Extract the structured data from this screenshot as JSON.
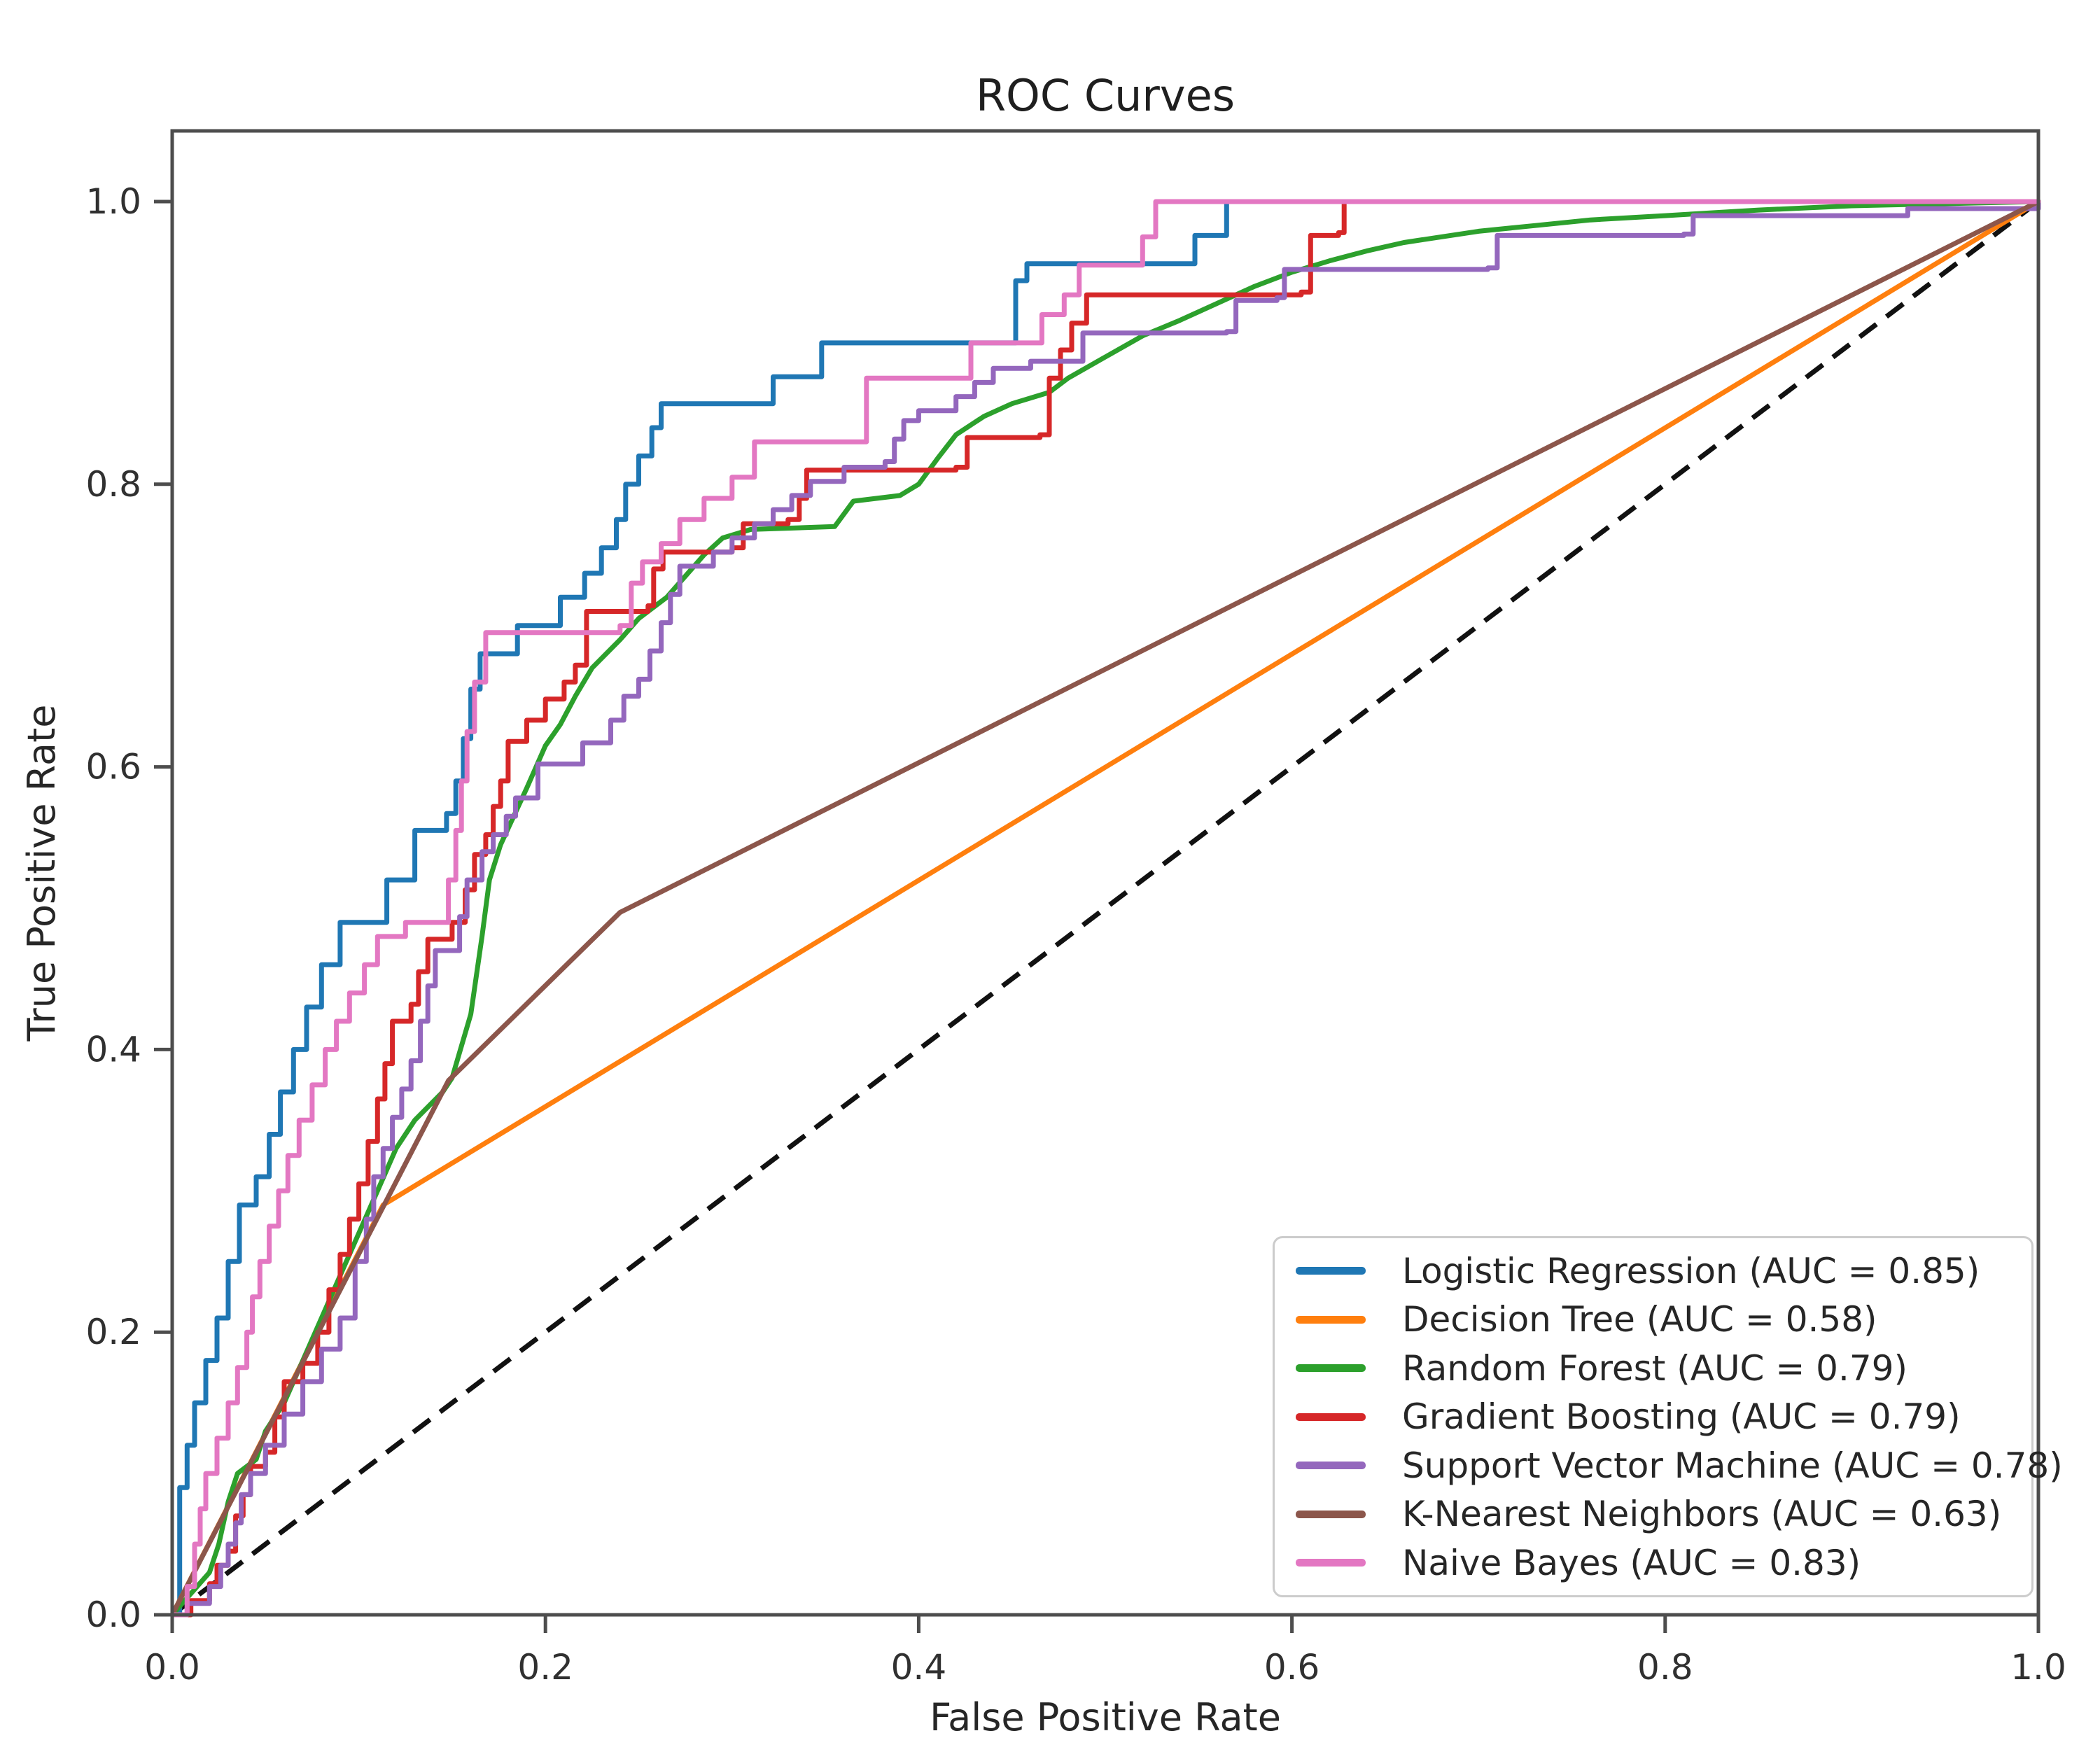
{
  "title": "ROC Curves",
  "axes": {
    "xlabel": "False Positive Rate",
    "ylabel": "True Positive Rate",
    "x_ticks": [
      "0.0",
      "0.2",
      "0.4",
      "0.6",
      "0.8",
      "1.0"
    ],
    "y_ticks": [
      "0.0",
      "0.2",
      "0.4",
      "0.6",
      "0.8",
      "1.0"
    ]
  },
  "chart_data": {
    "type": "line",
    "title": "ROC Curves",
    "xlabel": "False Positive Rate",
    "ylabel": "True Positive Rate",
    "xlim": [
      0,
      1
    ],
    "ylim": [
      0,
      1.05
    ],
    "grid": false,
    "legend_position": "lower right",
    "baseline": {
      "name": "chance-diagonal",
      "style": "dashed",
      "color": "#111111",
      "points": [
        [
          0,
          0
        ],
        [
          1,
          1
        ]
      ]
    },
    "series": [
      {
        "name": "logistic-regression",
        "label": "Logistic Regression (AUC = 0.85)",
        "auc": 0.85,
        "color": "#1f77b4",
        "style": "step",
        "points": [
          [
            0,
            0
          ],
          [
            0.004,
            0.09
          ],
          [
            0.008,
            0.12
          ],
          [
            0.012,
            0.15
          ],
          [
            0.018,
            0.18
          ],
          [
            0.024,
            0.21
          ],
          [
            0.03,
            0.25
          ],
          [
            0.036,
            0.29
          ],
          [
            0.045,
            0.31
          ],
          [
            0.052,
            0.34
          ],
          [
            0.058,
            0.37
          ],
          [
            0.065,
            0.4
          ],
          [
            0.072,
            0.43
          ],
          [
            0.08,
            0.46
          ],
          [
            0.09,
            0.49
          ],
          [
            0.115,
            0.52
          ],
          [
            0.13,
            0.555
          ],
          [
            0.147,
            0.567
          ],
          [
            0.152,
            0.59
          ],
          [
            0.156,
            0.62
          ],
          [
            0.16,
            0.655
          ],
          [
            0.165,
            0.68
          ],
          [
            0.185,
            0.7
          ],
          [
            0.208,
            0.72
          ],
          [
            0.221,
            0.737
          ],
          [
            0.23,
            0.755
          ],
          [
            0.238,
            0.775
          ],
          [
            0.243,
            0.8
          ],
          [
            0.25,
            0.82
          ],
          [
            0.257,
            0.84
          ],
          [
            0.262,
            0.857
          ],
          [
            0.322,
            0.876
          ],
          [
            0.348,
            0.9
          ],
          [
            0.452,
            0.944
          ],
          [
            0.458,
            0.956
          ],
          [
            0.548,
            0.976
          ],
          [
            0.565,
            1.0
          ],
          [
            1,
            1
          ]
        ]
      },
      {
        "name": "decision-tree",
        "label": "Decision Tree (AUC = 0.58)",
        "auc": 0.58,
        "color": "#ff7f0e",
        "style": "linear",
        "points": [
          [
            0,
            0
          ],
          [
            0.113,
            0.29
          ],
          [
            1,
            1
          ]
        ]
      },
      {
        "name": "random-forest",
        "label": "Random Forest (AUC = 0.79)",
        "auc": 0.79,
        "color": "#2ca02c",
        "style": "linear",
        "points": [
          [
            0,
            0
          ],
          [
            0.01,
            0.015
          ],
          [
            0.02,
            0.03
          ],
          [
            0.025,
            0.05
          ],
          [
            0.03,
            0.08
          ],
          [
            0.035,
            0.1
          ],
          [
            0.045,
            0.11
          ],
          [
            0.05,
            0.13
          ],
          [
            0.06,
            0.15
          ],
          [
            0.07,
            0.18
          ],
          [
            0.08,
            0.21
          ],
          [
            0.09,
            0.24
          ],
          [
            0.1,
            0.27
          ],
          [
            0.11,
            0.3
          ],
          [
            0.12,
            0.33
          ],
          [
            0.13,
            0.35
          ],
          [
            0.145,
            0.37
          ],
          [
            0.15,
            0.38
          ],
          [
            0.16,
            0.425
          ],
          [
            0.166,
            0.48
          ],
          [
            0.17,
            0.52
          ],
          [
            0.176,
            0.545
          ],
          [
            0.183,
            0.565
          ],
          [
            0.19,
            0.585
          ],
          [
            0.2,
            0.615
          ],
          [
            0.208,
            0.63
          ],
          [
            0.216,
            0.65
          ],
          [
            0.225,
            0.67
          ],
          [
            0.24,
            0.69
          ],
          [
            0.25,
            0.705
          ],
          [
            0.265,
            0.72
          ],
          [
            0.275,
            0.735
          ],
          [
            0.285,
            0.75
          ],
          [
            0.295,
            0.762
          ],
          [
            0.31,
            0.768
          ],
          [
            0.355,
            0.77
          ],
          [
            0.365,
            0.788
          ],
          [
            0.39,
            0.792
          ],
          [
            0.4,
            0.8
          ],
          [
            0.41,
            0.818
          ],
          [
            0.42,
            0.835
          ],
          [
            0.435,
            0.848
          ],
          [
            0.45,
            0.857
          ],
          [
            0.47,
            0.865
          ],
          [
            0.48,
            0.875
          ],
          [
            0.5,
            0.89
          ],
          [
            0.52,
            0.905
          ],
          [
            0.54,
            0.916
          ],
          [
            0.56,
            0.928
          ],
          [
            0.58,
            0.94
          ],
          [
            0.6,
            0.95
          ],
          [
            0.62,
            0.958
          ],
          [
            0.64,
            0.965
          ],
          [
            0.66,
            0.971
          ],
          [
            0.68,
            0.975
          ],
          [
            0.7,
            0.979
          ],
          [
            0.73,
            0.983
          ],
          [
            0.76,
            0.987
          ],
          [
            0.8,
            0.99
          ],
          [
            0.85,
            0.994
          ],
          [
            0.9,
            0.997
          ],
          [
            1,
            1
          ]
        ]
      },
      {
        "name": "gradient-boosting",
        "label": "Gradient Boosting (AUC = 0.79)",
        "auc": 0.79,
        "color": "#d62728",
        "style": "step",
        "points": [
          [
            0,
            0
          ],
          [
            0.01,
            0.01
          ],
          [
            0.02,
            0.022
          ],
          [
            0.024,
            0.035
          ],
          [
            0.03,
            0.045
          ],
          [
            0.034,
            0.07
          ],
          [
            0.038,
            0.085
          ],
          [
            0.042,
            0.105
          ],
          [
            0.05,
            0.115
          ],
          [
            0.055,
            0.14
          ],
          [
            0.06,
            0.165
          ],
          [
            0.07,
            0.178
          ],
          [
            0.078,
            0.2
          ],
          [
            0.084,
            0.23
          ],
          [
            0.09,
            0.255
          ],
          [
            0.095,
            0.28
          ],
          [
            0.1,
            0.305
          ],
          [
            0.105,
            0.335
          ],
          [
            0.11,
            0.365
          ],
          [
            0.114,
            0.39
          ],
          [
            0.118,
            0.42
          ],
          [
            0.128,
            0.432
          ],
          [
            0.132,
            0.455
          ],
          [
            0.137,
            0.478
          ],
          [
            0.15,
            0.49
          ],
          [
            0.157,
            0.513
          ],
          [
            0.162,
            0.538
          ],
          [
            0.168,
            0.552
          ],
          [
            0.172,
            0.572
          ],
          [
            0.176,
            0.59
          ],
          [
            0.18,
            0.618
          ],
          [
            0.19,
            0.633
          ],
          [
            0.2,
            0.648
          ],
          [
            0.21,
            0.66
          ],
          [
            0.216,
            0.672
          ],
          [
            0.222,
            0.71
          ],
          [
            0.255,
            0.714
          ],
          [
            0.258,
            0.74
          ],
          [
            0.263,
            0.752
          ],
          [
            0.3,
            0.755
          ],
          [
            0.306,
            0.772
          ],
          [
            0.33,
            0.775
          ],
          [
            0.336,
            0.79
          ],
          [
            0.34,
            0.81
          ],
          [
            0.42,
            0.812
          ],
          [
            0.426,
            0.833
          ],
          [
            0.465,
            0.835
          ],
          [
            0.47,
            0.875
          ],
          [
            0.476,
            0.895
          ],
          [
            0.482,
            0.914
          ],
          [
            0.49,
            0.934
          ],
          [
            0.605,
            0.936
          ],
          [
            0.61,
            0.976
          ],
          [
            0.625,
            0.978
          ],
          [
            0.628,
            1.0
          ],
          [
            1,
            1
          ]
        ]
      },
      {
        "name": "support-vector-machine",
        "label": "Support Vector Machine (AUC = 0.78)",
        "auc": 0.78,
        "color": "#9467bd",
        "style": "step",
        "points": [
          [
            0,
            0
          ],
          [
            0.008,
            0.008
          ],
          [
            0.02,
            0.02
          ],
          [
            0.026,
            0.035
          ],
          [
            0.03,
            0.05
          ],
          [
            0.034,
            0.065
          ],
          [
            0.037,
            0.085
          ],
          [
            0.042,
            0.1
          ],
          [
            0.05,
            0.12
          ],
          [
            0.06,
            0.142
          ],
          [
            0.07,
            0.165
          ],
          [
            0.08,
            0.188
          ],
          [
            0.09,
            0.21
          ],
          [
            0.098,
            0.25
          ],
          [
            0.104,
            0.28
          ],
          [
            0.108,
            0.31
          ],
          [
            0.113,
            0.33
          ],
          [
            0.118,
            0.352
          ],
          [
            0.123,
            0.372
          ],
          [
            0.128,
            0.392
          ],
          [
            0.133,
            0.42
          ],
          [
            0.137,
            0.445
          ],
          [
            0.141,
            0.47
          ],
          [
            0.154,
            0.494
          ],
          [
            0.158,
            0.52
          ],
          [
            0.166,
            0.54
          ],
          [
            0.172,
            0.552
          ],
          [
            0.179,
            0.565
          ],
          [
            0.184,
            0.578
          ],
          [
            0.196,
            0.602
          ],
          [
            0.22,
            0.617
          ],
          [
            0.235,
            0.633
          ],
          [
            0.242,
            0.65
          ],
          [
            0.25,
            0.662
          ],
          [
            0.256,
            0.682
          ],
          [
            0.262,
            0.702
          ],
          [
            0.267,
            0.722
          ],
          [
            0.272,
            0.742
          ],
          [
            0.29,
            0.752
          ],
          [
            0.3,
            0.762
          ],
          [
            0.312,
            0.772
          ],
          [
            0.322,
            0.782
          ],
          [
            0.332,
            0.792
          ],
          [
            0.342,
            0.802
          ],
          [
            0.36,
            0.812
          ],
          [
            0.382,
            0.816
          ],
          [
            0.387,
            0.832
          ],
          [
            0.392,
            0.845
          ],
          [
            0.4,
            0.852
          ],
          [
            0.42,
            0.862
          ],
          [
            0.43,
            0.872
          ],
          [
            0.44,
            0.882
          ],
          [
            0.46,
            0.887
          ],
          [
            0.488,
            0.907
          ],
          [
            0.565,
            0.908
          ],
          [
            0.57,
            0.93
          ],
          [
            0.592,
            0.932
          ],
          [
            0.596,
            0.952
          ],
          [
            0.705,
            0.953
          ],
          [
            0.71,
            0.976
          ],
          [
            0.81,
            0.977
          ],
          [
            0.815,
            0.99
          ],
          [
            0.93,
            0.995
          ],
          [
            1,
            1
          ]
        ]
      },
      {
        "name": "k-nearest-neighbors",
        "label": "K-Nearest Neighbors (AUC = 0.63)",
        "auc": 0.63,
        "color": "#8c564b",
        "style": "linear",
        "points": [
          [
            0,
            0
          ],
          [
            0.148,
            0.378
          ],
          [
            0.24,
            0.497
          ],
          [
            1,
            1
          ]
        ]
      },
      {
        "name": "naive-bayes",
        "label": "Naive Bayes (AUC = 0.83)",
        "auc": 0.83,
        "color": "#e377c2",
        "style": "step",
        "points": [
          [
            0,
            0
          ],
          [
            0.008,
            0.02
          ],
          [
            0.012,
            0.05
          ],
          [
            0.015,
            0.075
          ],
          [
            0.018,
            0.1
          ],
          [
            0.024,
            0.125
          ],
          [
            0.03,
            0.15
          ],
          [
            0.035,
            0.175
          ],
          [
            0.04,
            0.2
          ],
          [
            0.043,
            0.225
          ],
          [
            0.047,
            0.25
          ],
          [
            0.052,
            0.275
          ],
          [
            0.057,
            0.3
          ],
          [
            0.062,
            0.325
          ],
          [
            0.068,
            0.35
          ],
          [
            0.075,
            0.375
          ],
          [
            0.082,
            0.4
          ],
          [
            0.088,
            0.42
          ],
          [
            0.095,
            0.44
          ],
          [
            0.103,
            0.46
          ],
          [
            0.11,
            0.48
          ],
          [
            0.125,
            0.49
          ],
          [
            0.148,
            0.52
          ],
          [
            0.152,
            0.555
          ],
          [
            0.155,
            0.59
          ],
          [
            0.158,
            0.625
          ],
          [
            0.162,
            0.66
          ],
          [
            0.168,
            0.695
          ],
          [
            0.24,
            0.7
          ],
          [
            0.246,
            0.73
          ],
          [
            0.252,
            0.745
          ],
          [
            0.262,
            0.758
          ],
          [
            0.272,
            0.775
          ],
          [
            0.285,
            0.79
          ],
          [
            0.3,
            0.805
          ],
          [
            0.312,
            0.83
          ],
          [
            0.372,
            0.875
          ],
          [
            0.428,
            0.9
          ],
          [
            0.466,
            0.92
          ],
          [
            0.478,
            0.934
          ],
          [
            0.486,
            0.955
          ],
          [
            0.52,
            0.975
          ],
          [
            0.527,
            1.0
          ],
          [
            1,
            1
          ]
        ]
      }
    ]
  },
  "legend": {
    "items": [
      "Logistic Regression (AUC = 0.85)",
      "Decision Tree (AUC = 0.58)",
      "Random Forest (AUC = 0.79)",
      "Gradient Boosting (AUC = 0.79)",
      "Support Vector Machine (AUC = 0.78)",
      "K-Nearest Neighbors (AUC = 0.63)",
      "Naive Bayes (AUC = 0.83)"
    ]
  }
}
